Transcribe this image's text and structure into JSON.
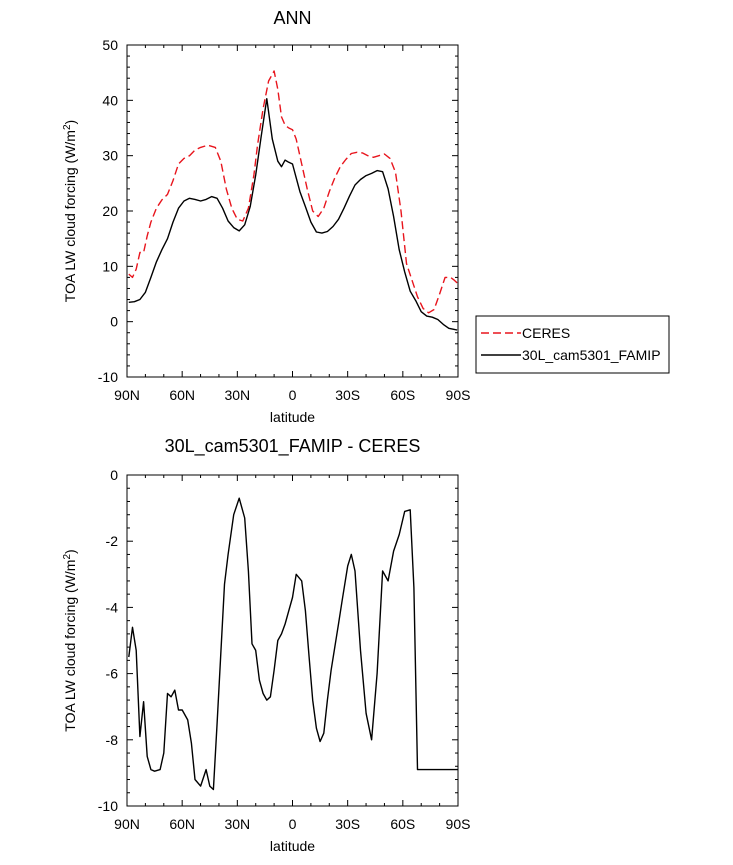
{
  "chart_data": [
    {
      "type": "line",
      "title": "ANN",
      "xlabel": "latitude",
      "ylabel": "TOA LW cloud forcing (W/m",
      "ylabel_sup": "2",
      "ylabel_end": ")",
      "xlim": [
        90,
        -90
      ],
      "ylim": [
        -10,
        50
      ],
      "xticks": [
        90,
        60,
        30,
        0,
        -30,
        -60,
        -90
      ],
      "xtick_labels": [
        "90N",
        "60N",
        "30N",
        "0",
        "30S",
        "60S",
        "90S"
      ],
      "yticks": [
        -10,
        0,
        10,
        20,
        30,
        40,
        50
      ],
      "ytick_labels": [
        "-10",
        "0",
        "10",
        "20",
        "30",
        "40",
        "50"
      ],
      "legend_position": "right",
      "series": [
        {
          "name": "CERES",
          "color": "#e8151d",
          "dash": "dashed",
          "x": [
            89,
            87,
            85,
            83,
            81,
            79,
            77,
            74,
            71,
            68,
            65,
            62,
            59,
            56,
            53,
            50,
            46,
            42,
            39,
            36,
            33,
            30,
            27,
            24,
            21,
            19,
            16,
            13,
            10,
            8,
            6,
            4,
            2,
            0,
            -2,
            -5,
            -8,
            -11,
            -14,
            -17,
            -20,
            -23,
            -26,
            -29,
            -32,
            -35,
            -38,
            -41,
            -44,
            -47,
            -50,
            -53,
            -56,
            -59,
            -62,
            -65,
            -68,
            -71,
            -74,
            -77,
            -80,
            -83,
            -86,
            -88,
            -89.5
          ],
          "y": [
            8.6,
            8.0,
            9.5,
            12.5,
            12.5,
            15.5,
            18.0,
            20.5,
            22.0,
            23.0,
            25.5,
            28.5,
            29.5,
            30.0,
            31.0,
            31.5,
            31.9,
            31.5,
            29.0,
            24.0,
            20.5,
            18.5,
            18.2,
            20.5,
            26.5,
            32.0,
            38.5,
            43.5,
            45.3,
            42.0,
            37.0,
            35.5,
            35.0,
            34.7,
            33.0,
            28.5,
            24.0,
            20.0,
            19.0,
            20.5,
            23.5,
            26.0,
            28.0,
            29.3,
            30.4,
            30.6,
            30.5,
            30.0,
            29.7,
            30.0,
            30.3,
            29.5,
            27.0,
            20.0,
            10.5,
            7.5,
            4.5,
            2.4,
            1.6,
            2.2,
            5.0,
            8.0,
            8.0,
            7.5,
            7.0
          ],
          "sample_note": ""
        },
        {
          "name": "30L_cam5301_FAMIP",
          "color": "#000000",
          "dash": "solid",
          "x": [
            89,
            86,
            83,
            80,
            77,
            74,
            71,
            68,
            65,
            62,
            59,
            56,
            53,
            50,
            47,
            44,
            41,
            38,
            35,
            32,
            29,
            26,
            23,
            20,
            17,
            14,
            11,
            8,
            6,
            4,
            2,
            0,
            -2,
            -4,
            -7,
            -10,
            -13,
            -16,
            -19,
            -22,
            -25,
            -28,
            -31,
            -34,
            -37,
            -40,
            -43,
            -46,
            -49,
            -52,
            -55,
            -58,
            -61,
            -64,
            -67,
            -70,
            -73,
            -76,
            -79,
            -82,
            -85,
            -88,
            -89.5
          ],
          "y": [
            3.5,
            3.6,
            4.0,
            5.3,
            8.0,
            10.8,
            13.0,
            15.0,
            18.0,
            20.5,
            21.8,
            22.3,
            22.1,
            21.8,
            22.1,
            22.6,
            22.3,
            20.5,
            18.2,
            17.0,
            16.4,
            17.5,
            20.8,
            26.5,
            33.5,
            40.3,
            33.0,
            29.0,
            28.0,
            29.2,
            28.8,
            28.5,
            26.0,
            23.5,
            20.8,
            18.0,
            16.2,
            16.0,
            16.3,
            17.2,
            18.5,
            20.5,
            22.7,
            24.7,
            25.7,
            26.4,
            26.8,
            27.3,
            27.1,
            24.0,
            19.0,
            13.0,
            9.0,
            5.5,
            3.8,
            1.8,
            1.0,
            0.8,
            0.4,
            -0.5,
            -1.2,
            -1.4,
            -1.5
          ],
          "sample_note": ""
        }
      ]
    },
    {
      "type": "line",
      "title": "30L_cam5301_FAMIP - CERES",
      "xlabel": "latitude",
      "ylabel": "TOA LW cloud forcing (W/m",
      "ylabel_sup": "2",
      "ylabel_end": ")",
      "xlim": [
        90,
        -90
      ],
      "ylim": [
        -10,
        0
      ],
      "xticks": [
        90,
        60,
        30,
        0,
        -30,
        -60,
        -90
      ],
      "xtick_labels": [
        "90N",
        "60N",
        "30N",
        "0",
        "30S",
        "60S",
        "90S"
      ],
      "yticks": [
        -10,
        -8,
        -6,
        -4,
        -2,
        0
      ],
      "ytick_labels": [
        "-10",
        "-8",
        "-6",
        "-4",
        "-2",
        "0"
      ],
      "series": [
        {
          "color": "#000000",
          "dash": "solid",
          "x": [
            89,
            87,
            85,
            83,
            81,
            79,
            77,
            75,
            72,
            70,
            68,
            66,
            64,
            62,
            60,
            57,
            55,
            53,
            50,
            47,
            45,
            43,
            41,
            39,
            37,
            35,
            32,
            29,
            26,
            24,
            22,
            20,
            18,
            16,
            14,
            12,
            10,
            8,
            6,
            4,
            2,
            0,
            -2,
            -5,
            -7,
            -9,
            -11,
            -13,
            -15,
            -17,
            -19,
            -21,
            -23,
            -25,
            -27,
            -30,
            -32,
            -34,
            -37,
            -40,
            -43,
            -46,
            -49,
            -52,
            -55,
            -58,
            -61,
            -64,
            -66,
            -68,
            -70,
            -72,
            -74,
            -76,
            -78,
            -80,
            -82,
            -84,
            -86,
            -88,
            -90
          ],
          "y": [
            -5.5,
            -4.6,
            -5.3,
            -7.9,
            -6.85,
            -8.5,
            -8.9,
            -8.95,
            -8.9,
            -8.4,
            -6.6,
            -6.7,
            -6.5,
            -7.1,
            -7.1,
            -7.4,
            -8.1,
            -9.2,
            -9.4,
            -8.9,
            -9.4,
            -9.5,
            -7.5,
            -5.4,
            -3.3,
            -2.4,
            -1.2,
            -0.7,
            -1.3,
            -2.9,
            -5.1,
            -5.3,
            -6.2,
            -6.6,
            -6.8,
            -6.7,
            -5.9,
            -5.0,
            -4.8,
            -4.5,
            -4.1,
            -3.7,
            -3.0,
            -3.2,
            -4.1,
            -5.5,
            -6.8,
            -7.65,
            -8.05,
            -7.8,
            -6.8,
            -5.9,
            -5.2,
            -4.5,
            -3.8,
            -2.75,
            -2.4,
            -2.9,
            -5.3,
            -7.2,
            -8.0,
            -6.0,
            -2.9,
            -3.2,
            -2.3,
            -1.8,
            -1.1,
            -1.05,
            -3.4,
            -8.9,
            -8.9,
            -8.9,
            -8.9,
            -8.9,
            -8.9,
            -8.9,
            -8.9,
            -8.9,
            -8.9,
            -8.9,
            -8.9
          ]
        }
      ]
    }
  ]
}
